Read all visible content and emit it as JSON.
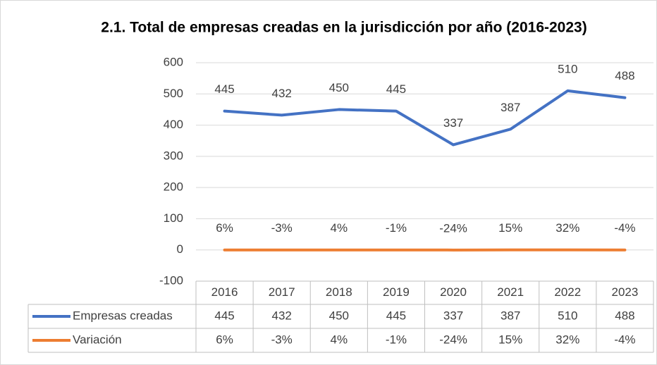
{
  "chart_data": {
    "type": "line",
    "title": "2.1. Total de empresas creadas en la jurisdicción por año (2016-2023)",
    "categories": [
      "2016",
      "2017",
      "2018",
      "2019",
      "2020",
      "2021",
      "2022",
      "2023"
    ],
    "series": [
      {
        "name": "Empresas creadas",
        "color": "#4472c4",
        "values": [
          445,
          432,
          450,
          445,
          337,
          387,
          510,
          488
        ]
      },
      {
        "name": "Variación",
        "color": "#ed7d31",
        "values": [
          0.06,
          -0.03,
          0.04,
          -0.01,
          -0.24,
          0.15,
          0.32,
          -0.04
        ],
        "value_labels": [
          "6%",
          "-3%",
          "4%",
          "-1%",
          "-24%",
          "15%",
          "32%",
          "-4%"
        ]
      }
    ],
    "ylim": [
      -100,
      600
    ],
    "yticks": [
      600,
      500,
      400,
      300,
      200,
      100,
      0,
      -100
    ],
    "grid": true,
    "data_table": true
  }
}
